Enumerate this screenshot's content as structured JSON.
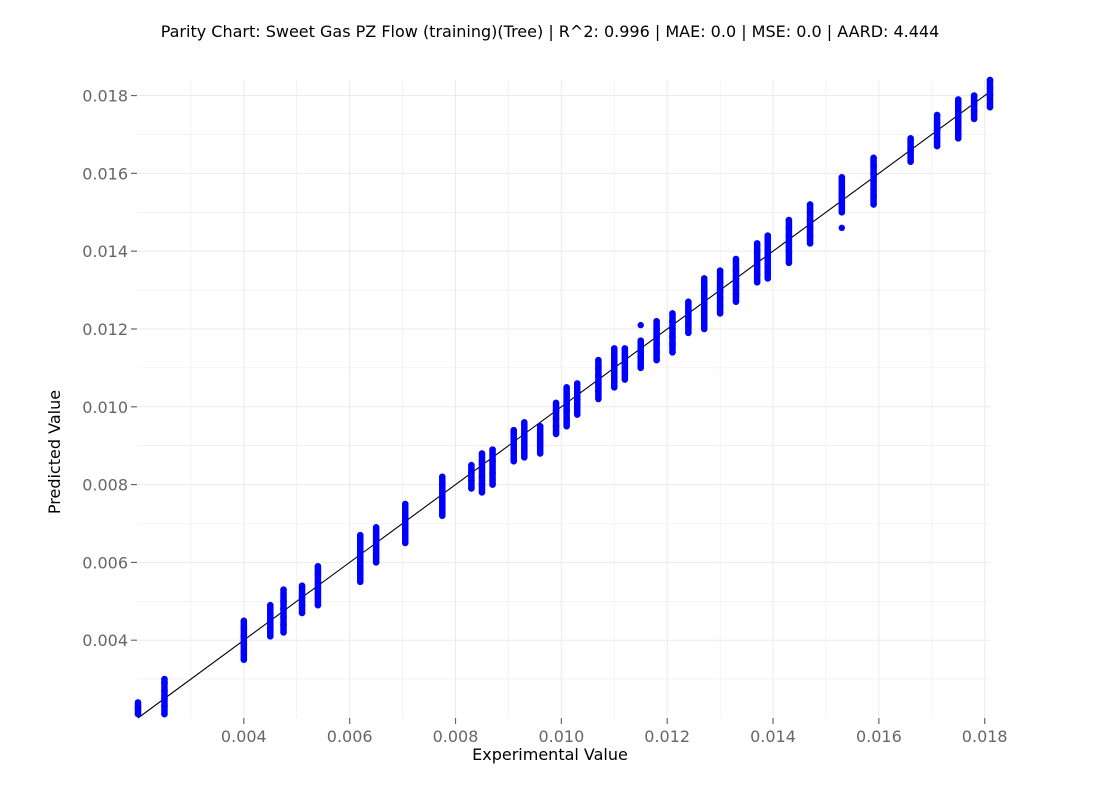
{
  "chart_data": {
    "type": "scatter",
    "title": "Parity Chart: Sweet Gas PZ Flow (training)(Tree) | R^2: 0.996 | MAE: 0.0 | MSE: 0.0 | AARD: 4.444",
    "xlabel": "Experimental Value",
    "ylabel": "Predicted Value",
    "xlim": [
      0.002,
      0.0181
    ],
    "ylim": [
      0.002,
      0.0184
    ],
    "x_ticks": [
      "0.004",
      "0.006",
      "0.008",
      "0.010",
      "0.012",
      "0.014",
      "0.016",
      "0.018"
    ],
    "y_ticks": [
      "0.004",
      "0.006",
      "0.008",
      "0.010",
      "0.012",
      "0.014",
      "0.016",
      "0.018"
    ],
    "grid": true,
    "reference_line": {
      "x": [
        0.002,
        0.0181
      ],
      "y": [
        0.002,
        0.0181
      ]
    },
    "point_color": "#0000ff",
    "line_color": "#000000",
    "grid_color": "#ebebeb",
    "tick_color": "#666666",
    "series": [
      {
        "points": [
          [
            0.002,
            0.0021
          ],
          [
            0.002,
            0.00225
          ],
          [
            0.002,
            0.0024
          ],
          [
            0.0025,
            0.0021
          ],
          [
            0.0025,
            0.0023
          ],
          [
            0.0025,
            0.0025
          ],
          [
            0.0025,
            0.0027
          ],
          [
            0.0025,
            0.0029
          ],
          [
            0.0025,
            0.003
          ],
          [
            0.004,
            0.0035
          ],
          [
            0.004,
            0.0037
          ],
          [
            0.004,
            0.0039
          ],
          [
            0.004,
            0.0041
          ],
          [
            0.004,
            0.0043
          ],
          [
            0.004,
            0.0045
          ],
          [
            0.0045,
            0.0041
          ],
          [
            0.0045,
            0.0043
          ],
          [
            0.0045,
            0.0045
          ],
          [
            0.0045,
            0.0047
          ],
          [
            0.0045,
            0.0049
          ],
          [
            0.00475,
            0.0042
          ],
          [
            0.00475,
            0.0044
          ],
          [
            0.00475,
            0.0046
          ],
          [
            0.00475,
            0.0048
          ],
          [
            0.00475,
            0.005
          ],
          [
            0.00475,
            0.0053
          ],
          [
            0.0051,
            0.0047
          ],
          [
            0.0051,
            0.0049
          ],
          [
            0.0051,
            0.0051
          ],
          [
            0.0051,
            0.0054
          ],
          [
            0.0054,
            0.0049
          ],
          [
            0.0054,
            0.0051
          ],
          [
            0.0054,
            0.0053
          ],
          [
            0.0054,
            0.0055
          ],
          [
            0.0054,
            0.0057
          ],
          [
            0.0054,
            0.0059
          ],
          [
            0.0062,
            0.0055
          ],
          [
            0.0062,
            0.0057
          ],
          [
            0.0062,
            0.0059
          ],
          [
            0.0062,
            0.0061
          ],
          [
            0.0062,
            0.0063
          ],
          [
            0.0062,
            0.0065
          ],
          [
            0.0062,
            0.0067
          ],
          [
            0.0065,
            0.006
          ],
          [
            0.0065,
            0.0062
          ],
          [
            0.0065,
            0.0064
          ],
          [
            0.0065,
            0.0066
          ],
          [
            0.0065,
            0.0068
          ],
          [
            0.0065,
            0.0069
          ],
          [
            0.00705,
            0.0065
          ],
          [
            0.00705,
            0.0067
          ],
          [
            0.00705,
            0.0069
          ],
          [
            0.00705,
            0.0071
          ],
          [
            0.00705,
            0.0073
          ],
          [
            0.00705,
            0.0075
          ],
          [
            0.00775,
            0.0072
          ],
          [
            0.00775,
            0.0074
          ],
          [
            0.00775,
            0.0076
          ],
          [
            0.00775,
            0.0078
          ],
          [
            0.00775,
            0.008
          ],
          [
            0.00775,
            0.0082
          ],
          [
            0.0083,
            0.0079
          ],
          [
            0.0083,
            0.0081
          ],
          [
            0.0083,
            0.0083
          ],
          [
            0.0083,
            0.0085
          ],
          [
            0.0085,
            0.0078
          ],
          [
            0.0085,
            0.008
          ],
          [
            0.0085,
            0.0082
          ],
          [
            0.0085,
            0.0084
          ],
          [
            0.0085,
            0.0086
          ],
          [
            0.0085,
            0.0088
          ],
          [
            0.0087,
            0.008
          ],
          [
            0.0087,
            0.0083
          ],
          [
            0.0087,
            0.0086
          ],
          [
            0.0087,
            0.0089
          ],
          [
            0.0091,
            0.0086
          ],
          [
            0.0091,
            0.0088
          ],
          [
            0.0091,
            0.009
          ],
          [
            0.0091,
            0.0092
          ],
          [
            0.0091,
            0.0094
          ],
          [
            0.0093,
            0.0087
          ],
          [
            0.0093,
            0.0089
          ],
          [
            0.0093,
            0.0091
          ],
          [
            0.0093,
            0.0093
          ],
          [
            0.0093,
            0.0096
          ],
          [
            0.0096,
            0.0088
          ],
          [
            0.0096,
            0.0091
          ],
          [
            0.0096,
            0.0093
          ],
          [
            0.0096,
            0.0095
          ],
          [
            0.0099,
            0.0093
          ],
          [
            0.0099,
            0.0095
          ],
          [
            0.0099,
            0.0097
          ],
          [
            0.0099,
            0.0099
          ],
          [
            0.0099,
            0.0101
          ],
          [
            0.0101,
            0.0095
          ],
          [
            0.0101,
            0.0097
          ],
          [
            0.0101,
            0.0099
          ],
          [
            0.0101,
            0.0101
          ],
          [
            0.0101,
            0.0103
          ],
          [
            0.0101,
            0.0105
          ],
          [
            0.0103,
            0.0098
          ],
          [
            0.0103,
            0.01
          ],
          [
            0.0103,
            0.0102
          ],
          [
            0.0103,
            0.0104
          ],
          [
            0.0103,
            0.0106
          ],
          [
            0.0107,
            0.0102
          ],
          [
            0.0107,
            0.0104
          ],
          [
            0.0107,
            0.0106
          ],
          [
            0.0107,
            0.0108
          ],
          [
            0.0107,
            0.011
          ],
          [
            0.0107,
            0.0112
          ],
          [
            0.011,
            0.0105
          ],
          [
            0.011,
            0.0107
          ],
          [
            0.011,
            0.0109
          ],
          [
            0.011,
            0.0111
          ],
          [
            0.011,
            0.0113
          ],
          [
            0.011,
            0.0115
          ],
          [
            0.0112,
            0.0107
          ],
          [
            0.0112,
            0.0109
          ],
          [
            0.0112,
            0.0111
          ],
          [
            0.0112,
            0.0113
          ],
          [
            0.0112,
            0.0115
          ],
          [
            0.0115,
            0.011
          ],
          [
            0.0115,
            0.0112
          ],
          [
            0.0115,
            0.0114
          ],
          [
            0.0115,
            0.0117
          ],
          [
            0.0115,
            0.0121
          ],
          [
            0.0118,
            0.0112
          ],
          [
            0.0118,
            0.0114
          ],
          [
            0.0118,
            0.0116
          ],
          [
            0.0118,
            0.0118
          ],
          [
            0.0118,
            0.012
          ],
          [
            0.0118,
            0.0122
          ],
          [
            0.0121,
            0.0114
          ],
          [
            0.0121,
            0.0116
          ],
          [
            0.0121,
            0.0118
          ],
          [
            0.0121,
            0.012
          ],
          [
            0.0121,
            0.0122
          ],
          [
            0.0121,
            0.0124
          ],
          [
            0.0124,
            0.0119
          ],
          [
            0.0124,
            0.0121
          ],
          [
            0.0124,
            0.0123
          ],
          [
            0.0124,
            0.0125
          ],
          [
            0.0124,
            0.0127
          ],
          [
            0.0127,
            0.012
          ],
          [
            0.0127,
            0.0122
          ],
          [
            0.0127,
            0.0124
          ],
          [
            0.0127,
            0.0126
          ],
          [
            0.0127,
            0.0128
          ],
          [
            0.0127,
            0.013
          ],
          [
            0.0127,
            0.0133
          ],
          [
            0.013,
            0.0124
          ],
          [
            0.013,
            0.0126
          ],
          [
            0.013,
            0.0128
          ],
          [
            0.013,
            0.013
          ],
          [
            0.013,
            0.0132
          ],
          [
            0.013,
            0.0135
          ],
          [
            0.0133,
            0.0127
          ],
          [
            0.0133,
            0.0129
          ],
          [
            0.0133,
            0.0131
          ],
          [
            0.0133,
            0.0133
          ],
          [
            0.0133,
            0.0135
          ],
          [
            0.0133,
            0.0138
          ],
          [
            0.0137,
            0.0132
          ],
          [
            0.0137,
            0.0134
          ],
          [
            0.0137,
            0.0136
          ],
          [
            0.0137,
            0.0138
          ],
          [
            0.0137,
            0.014
          ],
          [
            0.0137,
            0.0142
          ],
          [
            0.0139,
            0.0133
          ],
          [
            0.0139,
            0.0136
          ],
          [
            0.0139,
            0.0139
          ],
          [
            0.0139,
            0.0142
          ],
          [
            0.0139,
            0.0144
          ],
          [
            0.0143,
            0.0137
          ],
          [
            0.0143,
            0.014
          ],
          [
            0.0143,
            0.0142
          ],
          [
            0.0143,
            0.0144
          ],
          [
            0.0143,
            0.0146
          ],
          [
            0.0143,
            0.0148
          ],
          [
            0.0147,
            0.0142
          ],
          [
            0.0147,
            0.0144
          ],
          [
            0.0147,
            0.0146
          ],
          [
            0.0147,
            0.0148
          ],
          [
            0.0147,
            0.015
          ],
          [
            0.0147,
            0.0152
          ],
          [
            0.0153,
            0.0146
          ],
          [
            0.0153,
            0.015
          ],
          [
            0.0153,
            0.0152
          ],
          [
            0.0153,
            0.0154
          ],
          [
            0.0153,
            0.0156
          ],
          [
            0.0153,
            0.0159
          ],
          [
            0.0159,
            0.0152
          ],
          [
            0.0159,
            0.0154
          ],
          [
            0.0159,
            0.0156
          ],
          [
            0.0159,
            0.0158
          ],
          [
            0.0159,
            0.016
          ],
          [
            0.0159,
            0.0162
          ],
          [
            0.0159,
            0.0164
          ],
          [
            0.0166,
            0.0163
          ],
          [
            0.0166,
            0.0166
          ],
          [
            0.0166,
            0.0169
          ],
          [
            0.0171,
            0.0167
          ],
          [
            0.0171,
            0.0169
          ],
          [
            0.0171,
            0.0171
          ],
          [
            0.0171,
            0.0173
          ],
          [
            0.0171,
            0.0175
          ],
          [
            0.0175,
            0.0169
          ],
          [
            0.0175,
            0.0172
          ],
          [
            0.0175,
            0.0174
          ],
          [
            0.0175,
            0.0176
          ],
          [
            0.0175,
            0.0179
          ],
          [
            0.0178,
            0.0174
          ],
          [
            0.0178,
            0.0176
          ],
          [
            0.0178,
            0.0178
          ],
          [
            0.0178,
            0.018
          ],
          [
            0.0181,
            0.0177
          ],
          [
            0.0181,
            0.018
          ],
          [
            0.0181,
            0.0182
          ],
          [
            0.0181,
            0.0184
          ]
        ]
      }
    ]
  }
}
